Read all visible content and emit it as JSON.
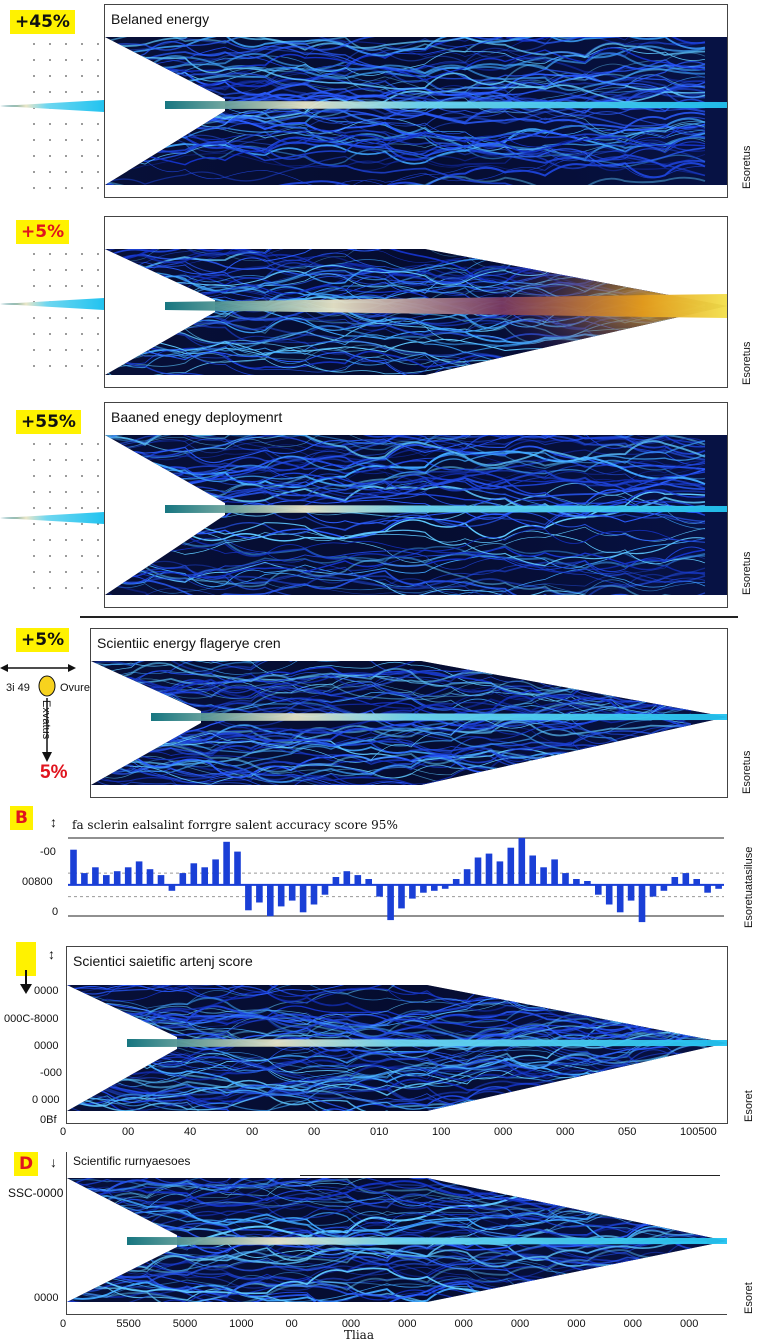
{
  "panels": [
    {
      "badge": "+45%",
      "title": "Belaned  energy",
      "side": [
        "↕",
        "↕",
        "Esoretus"
      ]
    },
    {
      "badge": "+5%",
      "title": "",
      "side": [
        "↕",
        "↕",
        "Esoretus"
      ]
    },
    {
      "badge": "+55%",
      "title": "Baaned enegy deploymenrt",
      "side": [
        "↕",
        "↕",
        "Esoretus"
      ]
    },
    {
      "badge": "+5%",
      "title": "Scientiic energy flagerye cren",
      "side": [
        "↕",
        "↕",
        "Esoretus"
      ],
      "annotation": {
        "left_text": "3i  49",
        "right_text": "Ovure",
        "vertical_text": "Exvatus",
        "bottom_pct": "5%"
      }
    }
  ],
  "chart_b": {
    "letter": "B",
    "title": "fa sclerin ealsalint forrgre  salent accuracy score 95%",
    "y_labels": [
      "-00",
      "00800",
      "0"
    ],
    "side_label": "Esoretuatasiluse",
    "chart_data": {
      "type": "bar",
      "title": "fa sclerin ealsalint forrgre  salent accuracy score 95%",
      "x": [
        1,
        2,
        3,
        4,
        5,
        6,
        7,
        8,
        9,
        10,
        11,
        12,
        13,
        14,
        15,
        16,
        17,
        18,
        19,
        20,
        21,
        22,
        23,
        24,
        25,
        26,
        27,
        28,
        29,
        30,
        31,
        32,
        33,
        34,
        35,
        36,
        37,
        38,
        39,
        40,
        41,
        42,
        43,
        44,
        45,
        46,
        47,
        48,
        49,
        50,
        51,
        52,
        53,
        54,
        55,
        56,
        57,
        58,
        59,
        60
      ],
      "values": [
        1.8,
        0.6,
        0.9,
        0.5,
        0.7,
        0.9,
        1.2,
        0.8,
        0.5,
        -0.3,
        0.6,
        1.1,
        0.9,
        1.3,
        2.2,
        1.7,
        -1.3,
        -0.9,
        -1.6,
        -1.1,
        -0.8,
        -1.4,
        -1.0,
        -0.5,
        0.4,
        0.7,
        0.5,
        0.3,
        -0.6,
        -1.8,
        -1.2,
        -0.7,
        -0.4,
        -0.3,
        -0.2,
        0.3,
        0.8,
        1.4,
        1.6,
        1.2,
        1.9,
        2.4,
        1.5,
        0.9,
        1.3,
        0.6,
        0.3,
        0.2,
        -0.5,
        -1.0,
        -1.4,
        -0.8,
        -1.9,
        -0.6,
        -0.3,
        0.4,
        0.6,
        0.3,
        -0.4,
        -0.2
      ],
      "ylim": [
        -2,
        2.6
      ]
    }
  },
  "chart_c": {
    "letter": "",
    "title": "Scientici saietific artenj score",
    "y_labels": [
      "0000",
      "000C-8000",
      "0000",
      "-000",
      "0 000",
      "0Bf"
    ],
    "x_labels": [
      "0",
      "00",
      "40",
      "00",
      "00",
      "010",
      "100",
      "000",
      "000",
      "050",
      "100500"
    ],
    "side": [
      "↕",
      "↕",
      "Esoret"
    ]
  },
  "chart_d": {
    "letter": "D",
    "title": "Scientific rurnyaesoes",
    "y_labels": [
      "SSC-0000",
      "0000"
    ],
    "x_labels": [
      "0",
      "5500",
      "5000",
      "1000",
      "00",
      "000",
      "000",
      "000",
      "000",
      "000",
      "000",
      "000"
    ],
    "xlabel": "Tliaa",
    "side": [
      "↕",
      "↕",
      "Esoret"
    ]
  },
  "colors": {
    "badge": "#fff200",
    "badge_red": "#e0141e",
    "line_blue": "#1a3fd6",
    "field_dark": "#04081c"
  }
}
